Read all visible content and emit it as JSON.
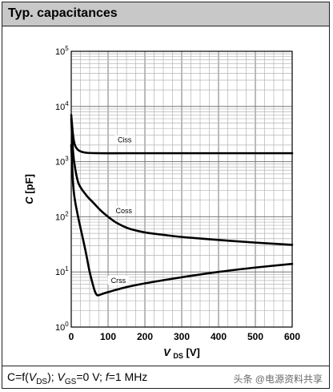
{
  "title": "Typ. capacitances",
  "caption": {
    "prefix": "C=f(",
    "v_ds_var": "V",
    "v_ds_sub": "DS",
    "mid": "); ",
    "v_gs_var": "V",
    "v_gs_sub": "GS",
    "v_gs_val": "=0 V; ",
    "f_var": "f",
    "f_val": "=1 MHz"
  },
  "watermark": "头条 @电源资料共享",
  "chart_data": {
    "type": "line",
    "title": "Typ. capacitances",
    "xlabel_var": "V",
    "xlabel_sub": "DS",
    "xlabel_unit": "[V]",
    "ylabel_var": "C",
    "ylabel_unit": "[pF]",
    "xlim": [
      0,
      600
    ],
    "ylim": [
      1,
      100000
    ],
    "y_scale": "log",
    "grid": true,
    "x_ticks": [
      0,
      100,
      200,
      300,
      400,
      500,
      600
    ],
    "y_ticks": [
      {
        "value": 1,
        "base": "10",
        "exp": "0"
      },
      {
        "value": 10,
        "base": "10",
        "exp": "1"
      },
      {
        "value": 100,
        "base": "10",
        "exp": "2"
      },
      {
        "value": 1000,
        "base": "10",
        "exp": "3"
      },
      {
        "value": 10000,
        "base": "10",
        "exp": "4"
      },
      {
        "value": 100000,
        "base": "10",
        "exp": "5"
      }
    ],
    "series": [
      {
        "name": "Ciss",
        "x": [
          0,
          5,
          10,
          20,
          40,
          80,
          150,
          300,
          450,
          600
        ],
        "y": [
          7000,
          3000,
          2000,
          1600,
          1450,
          1420,
          1420,
          1420,
          1420,
          1420
        ]
      },
      {
        "name": "Coss",
        "x": [
          0,
          5,
          10,
          20,
          40,
          60,
          80,
          100,
          120,
          140,
          160,
          200,
          250,
          300,
          400,
          500,
          600
        ],
        "y": [
          6000,
          1500,
          800,
          400,
          250,
          180,
          130,
          100,
          80,
          68,
          60,
          52,
          47,
          43,
          38,
          34,
          31
        ]
      },
      {
        "name": "Crss",
        "x": [
          0,
          5,
          10,
          20,
          30,
          40,
          50,
          60,
          65,
          70,
          75,
          80,
          100,
          150,
          200,
          300,
          400,
          500,
          600
        ],
        "y": [
          2000,
          400,
          200,
          90,
          45,
          22,
          10,
          5.5,
          4.3,
          3.8,
          3.8,
          3.9,
          4.3,
          5.3,
          6.2,
          8.0,
          10,
          12,
          14
        ]
      }
    ],
    "annotations": [
      {
        "text": "Ciss",
        "x": 145,
        "y": 2300
      },
      {
        "text": "Coss",
        "x": 143,
        "y": 120
      },
      {
        "text": "Crss",
        "x": 128,
        "y": 6.5
      }
    ]
  }
}
